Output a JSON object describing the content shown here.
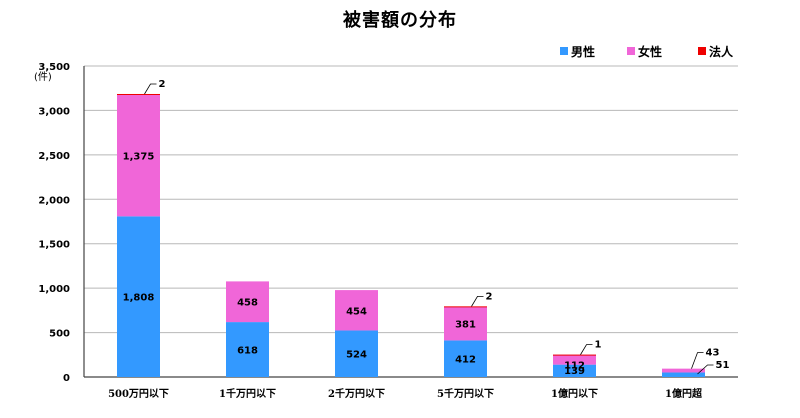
{
  "chart_data": {
    "type": "bar",
    "stacked": true,
    "title": "被害額の分布",
    "ylabel": "(件)",
    "ylim": [
      0,
      3500
    ],
    "yticks": [
      0,
      500,
      1000,
      1500,
      2000,
      2500,
      3000,
      3500
    ],
    "ytick_labels": [
      "0",
      "500",
      "1,000",
      "1,500",
      "2,000",
      "2,500",
      "3,000",
      "3,500"
    ],
    "grid": true,
    "legend_position": "top-right",
    "categories": [
      "500万円以下",
      "1千万円以下",
      "2千万円以下",
      "5千万円以下",
      "1億円以下",
      "1億円超"
    ],
    "series": [
      {
        "name": "男性",
        "color": "#3399ff",
        "values": [
          1808,
          618,
          524,
          412,
          139,
          51
        ]
      },
      {
        "name": "女性",
        "color": "#f066d8",
        "values": [
          1375,
          458,
          454,
          381,
          112,
          43
        ]
      },
      {
        "name": "法人",
        "color": "#ee0000",
        "values": [
          2,
          0,
          0,
          2,
          1,
          0
        ]
      }
    ],
    "data_labels": [
      [
        "1,808",
        "1,375",
        "2"
      ],
      [
        "618",
        "458",
        null
      ],
      [
        "524",
        "454",
        null
      ],
      [
        "412",
        "381",
        "2"
      ],
      [
        "139",
        "112",
        "1"
      ],
      [
        "51",
        "43",
        null
      ]
    ]
  }
}
